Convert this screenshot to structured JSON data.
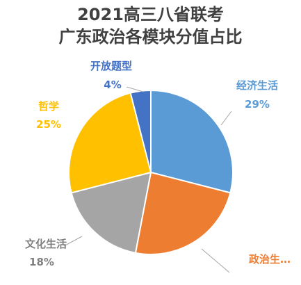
{
  "chart_data": {
    "type": "pie",
    "title": "2021高三八省联考 广东政治各模块分值占比",
    "title_lines": [
      "2021高三八省联考",
      "广东政治各模块分值占比"
    ],
    "slices": [
      {
        "label": "经济生活",
        "display_label": "经济生活",
        "value": 29,
        "pct_text": "29%",
        "color": "#5B9BD5"
      },
      {
        "label": "政治生活",
        "display_label": "政治生…",
        "value": 24,
        "pct_text": "",
        "color": "#ED7D31"
      },
      {
        "label": "文化生活",
        "display_label": "文化生活",
        "value": 18,
        "pct_text": "18%",
        "color": "#A5A5A5"
      },
      {
        "label": "哲学",
        "display_label": "哲学",
        "value": 25,
        "pct_text": "25%",
        "color": "#FFC000"
      },
      {
        "label": "开放题型",
        "display_label": "开放题型",
        "value": 4,
        "pct_text": "4%",
        "color": "#4472C4"
      }
    ],
    "start_angle_deg": 0,
    "direction": "clockwise",
    "legend": "none",
    "data_labels": "outside with leader lines"
  }
}
